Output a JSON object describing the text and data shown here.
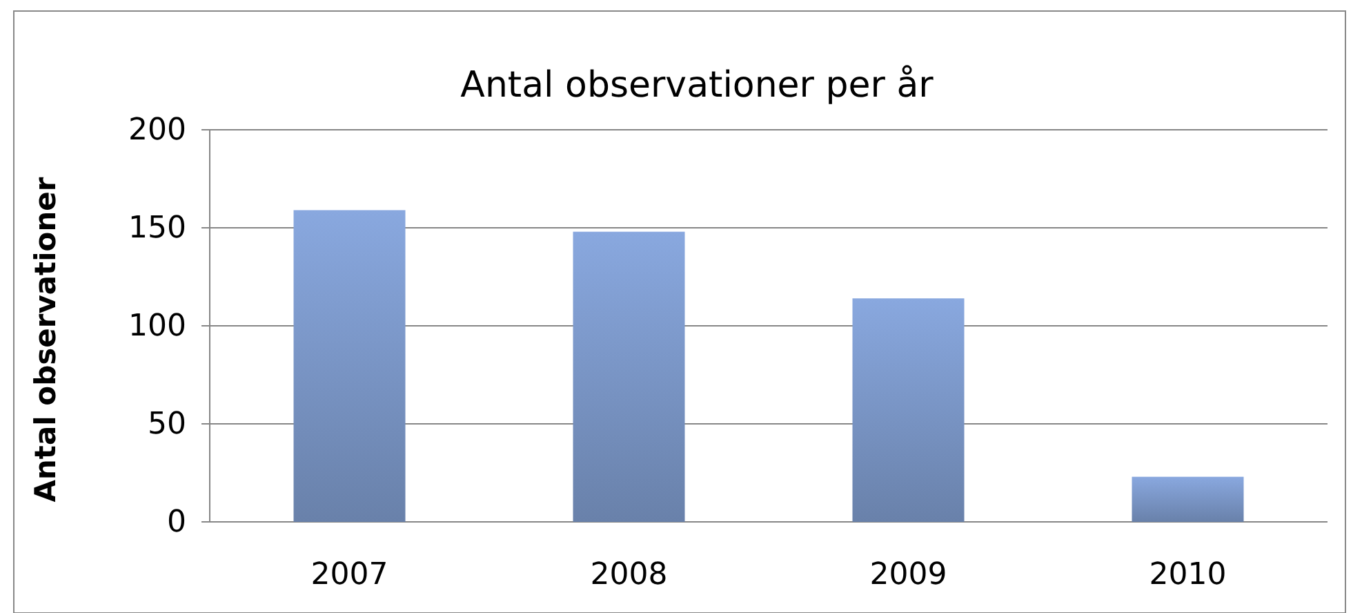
{
  "chart_data": {
    "type": "bar",
    "title": "Antal observationer per år",
    "ylabel": "Antal observationer",
    "categories": [
      "2007",
      "2008",
      "2009",
      "2010"
    ],
    "values": [
      159,
      148,
      114,
      23
    ],
    "color": "#7b97c8",
    "ylim": [
      0,
      200
    ],
    "yticks": [
      0,
      50,
      100,
      150,
      200
    ],
    "grid": "y"
  }
}
